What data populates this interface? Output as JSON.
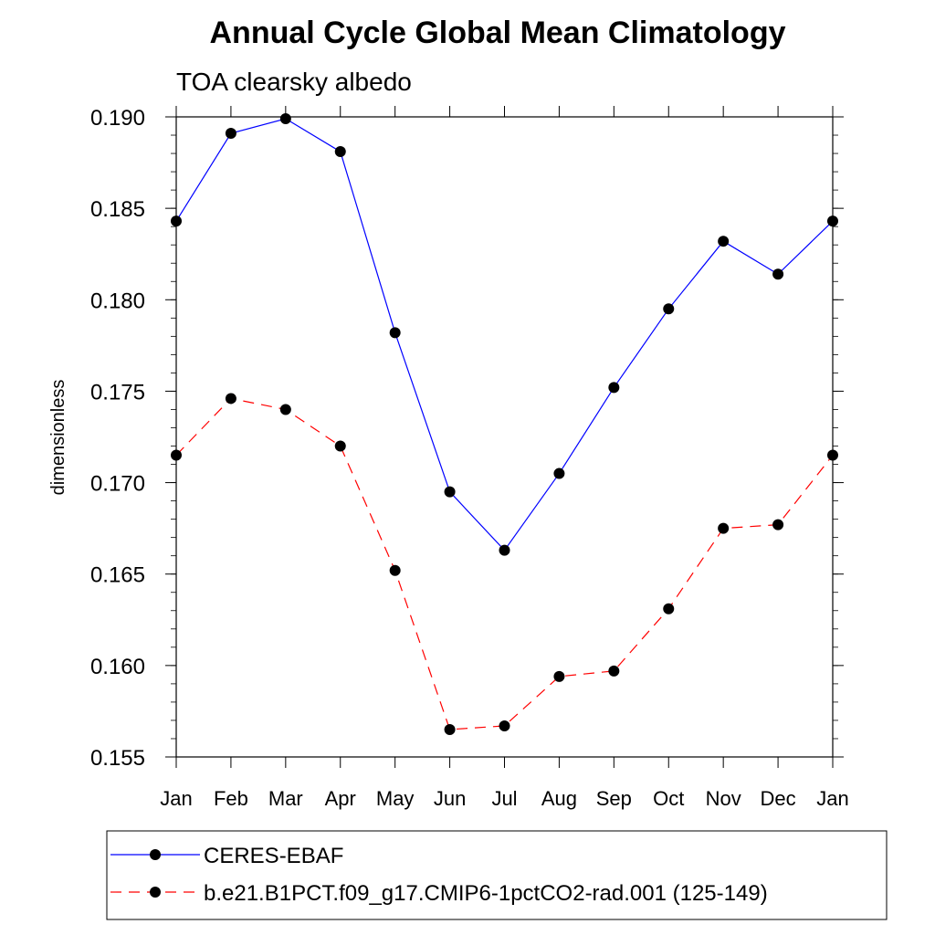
{
  "chart_data": {
    "type": "line",
    "title": "Annual Cycle Global Mean Climatology",
    "subtitle": "TOA clearsky albedo",
    "xlabel": "",
    "ylabel": "dimensionless",
    "categories": [
      "Jan",
      "Feb",
      "Mar",
      "Apr",
      "May",
      "Jun",
      "Jul",
      "Aug",
      "Sep",
      "Oct",
      "Nov",
      "Dec",
      "Jan"
    ],
    "ylim": [
      0.155,
      0.19
    ],
    "yticks": [
      "0.155",
      "0.160",
      "0.165",
      "0.170",
      "0.175",
      "0.180",
      "0.185",
      "0.190"
    ],
    "grid": false,
    "legend_position": "bottom",
    "series": [
      {
        "name": "CERES-EBAF",
        "color": "#0000ff",
        "line_style": "solid",
        "values": [
          0.1843,
          0.1891,
          0.1899,
          0.1881,
          0.1782,
          0.1695,
          0.1663,
          0.1705,
          0.1752,
          0.1795,
          0.1832,
          0.1814,
          0.1843
        ]
      },
      {
        "name": "b.e21.B1PCT.f09_g17.CMIP6-1pctCO2-rad.001 (125-149)",
        "color": "#ff0000",
        "line_style": "dashed",
        "values": [
          0.1715,
          0.1746,
          0.174,
          0.172,
          0.1652,
          0.1565,
          0.1567,
          0.1594,
          0.1597,
          0.1631,
          0.1675,
          0.1677,
          0.1715
        ]
      }
    ]
  }
}
